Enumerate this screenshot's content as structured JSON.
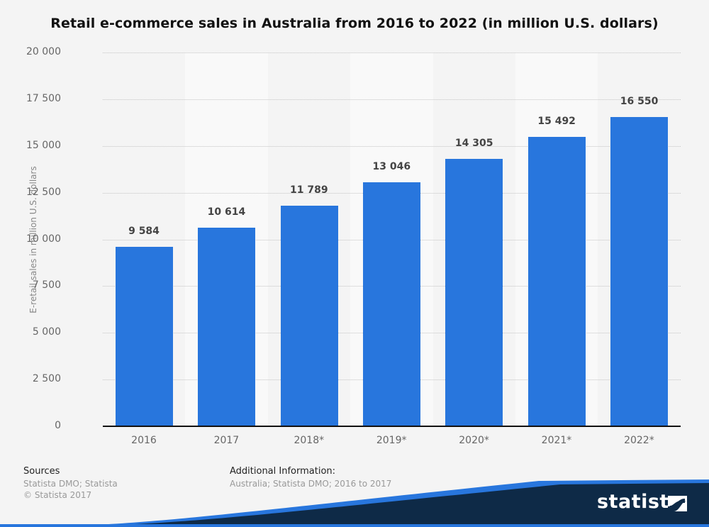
{
  "title": "Retail e-commerce sales in Australia from 2016 to 2022 (in million U.S. dollars)",
  "chart_data": {
    "type": "bar",
    "title": "Retail e-commerce sales in Australia from 2016 to 2022 (in million U.S. dollars)",
    "categories": [
      "2016",
      "2017",
      "2018*",
      "2019*",
      "2020*",
      "2021*",
      "2022*"
    ],
    "values": [
      9584,
      10614,
      11789,
      13046,
      14305,
      15492,
      16550
    ],
    "value_labels": [
      "9 584",
      "10 614",
      "11 789",
      "13 046",
      "14 305",
      "15 492",
      "16 550"
    ],
    "xlabel": "",
    "ylabel": "E-retail sales in million U.S. dollars",
    "ylim": [
      0,
      20000
    ],
    "yticks": [
      "0",
      "2 500",
      "5 000",
      "7 500",
      "10 000",
      "12 500",
      "15 000",
      "17 500",
      "20 000"
    ],
    "grid": true,
    "bar_color": "#2876dd",
    "legend": null
  },
  "footer": {
    "sources_heading": "Sources",
    "sources_line1": "Statista DMO; Statista",
    "sources_line2": "© Statista 2017",
    "additional_heading": "Additional Information:",
    "additional_text": "Australia; Statista DMO; 2016 to 2017"
  },
  "brand": {
    "logo_text": "statista",
    "logo_icon": "statista-logo-icon",
    "dark_color": "#0e2a47",
    "accent_color": "#2876dd"
  }
}
